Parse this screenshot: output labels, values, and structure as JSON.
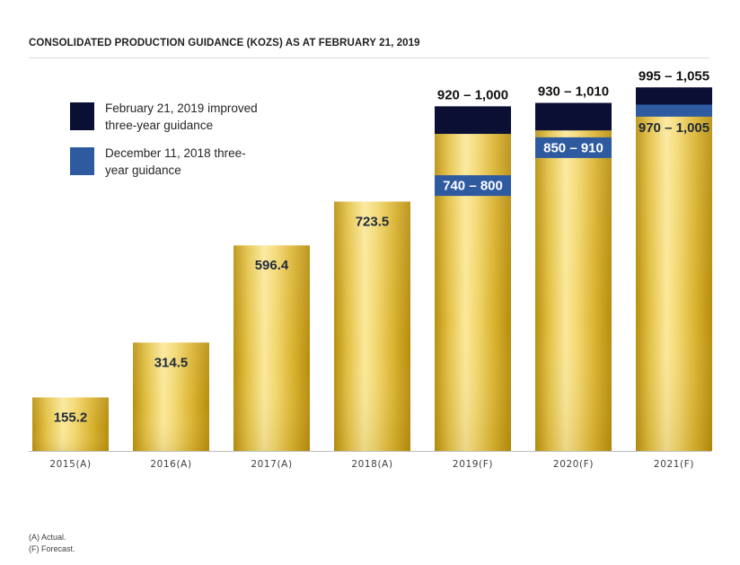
{
  "title": "CONSOLIDATED PRODUCTION GUIDANCE (KOZS) AS AT FEBRUARY 21, 2019",
  "legend": [
    {
      "label_line1": "February 21, 2019 improved",
      "label_line2": "three-year guidance",
      "color": "#0a0f33"
    },
    {
      "label_line1": "December 11, 2018 three-",
      "label_line2": "year guidance",
      "color": "#2e5aa0"
    }
  ],
  "footnotes": [
    "(A) Actual.",
    "(F) Forecast."
  ],
  "chart_data": {
    "type": "bar",
    "title": "CONSOLIDATED PRODUCTION GUIDANCE (KOZS) AS AT FEBRUARY 21, 2019",
    "categories": [
      "2015(A)",
      "2016(A)",
      "2017(A)",
      "2018(A)",
      "2019(F)",
      "2020(F)",
      "2021(F)"
    ],
    "actuals": [
      {
        "category": "2015(A)",
        "value": 155.2,
        "label": "155.2"
      },
      {
        "category": "2016(A)",
        "value": 314.5,
        "label": "314.5"
      },
      {
        "category": "2017(A)",
        "value": 596.4,
        "label": "596.4"
      },
      {
        "category": "2018(A)",
        "value": 723.5,
        "label": "723.5"
      }
    ],
    "series": [
      {
        "name": "February 21, 2019 improved three-year guidance",
        "color": "#0a0f33",
        "ranges": [
          {
            "category": "2019(F)",
            "low": 920,
            "high": 1000,
            "label": "920 – 1,000"
          },
          {
            "category": "2020(F)",
            "low": 930,
            "high": 1010,
            "label": "930 – 1,010"
          },
          {
            "category": "2021(F)",
            "low": 995,
            "high": 1055,
            "label": "995 – 1,055"
          }
        ]
      },
      {
        "name": "December 11, 2018 three-year guidance",
        "color": "#2e5aa0",
        "ranges": [
          {
            "category": "2019(F)",
            "low": 740,
            "high": 800,
            "label": "740 – 800"
          },
          {
            "category": "2020(F)",
            "low": 850,
            "high": 910,
            "label": "850 – 910"
          },
          {
            "category": "2021(F)",
            "low": 970,
            "high": 1005,
            "label": "970 – 1,005"
          }
        ]
      }
    ],
    "ylim": [
      0,
      1100
    ],
    "grid": false,
    "legend_position": "top-left",
    "bar_fill": "gold-gradient"
  }
}
